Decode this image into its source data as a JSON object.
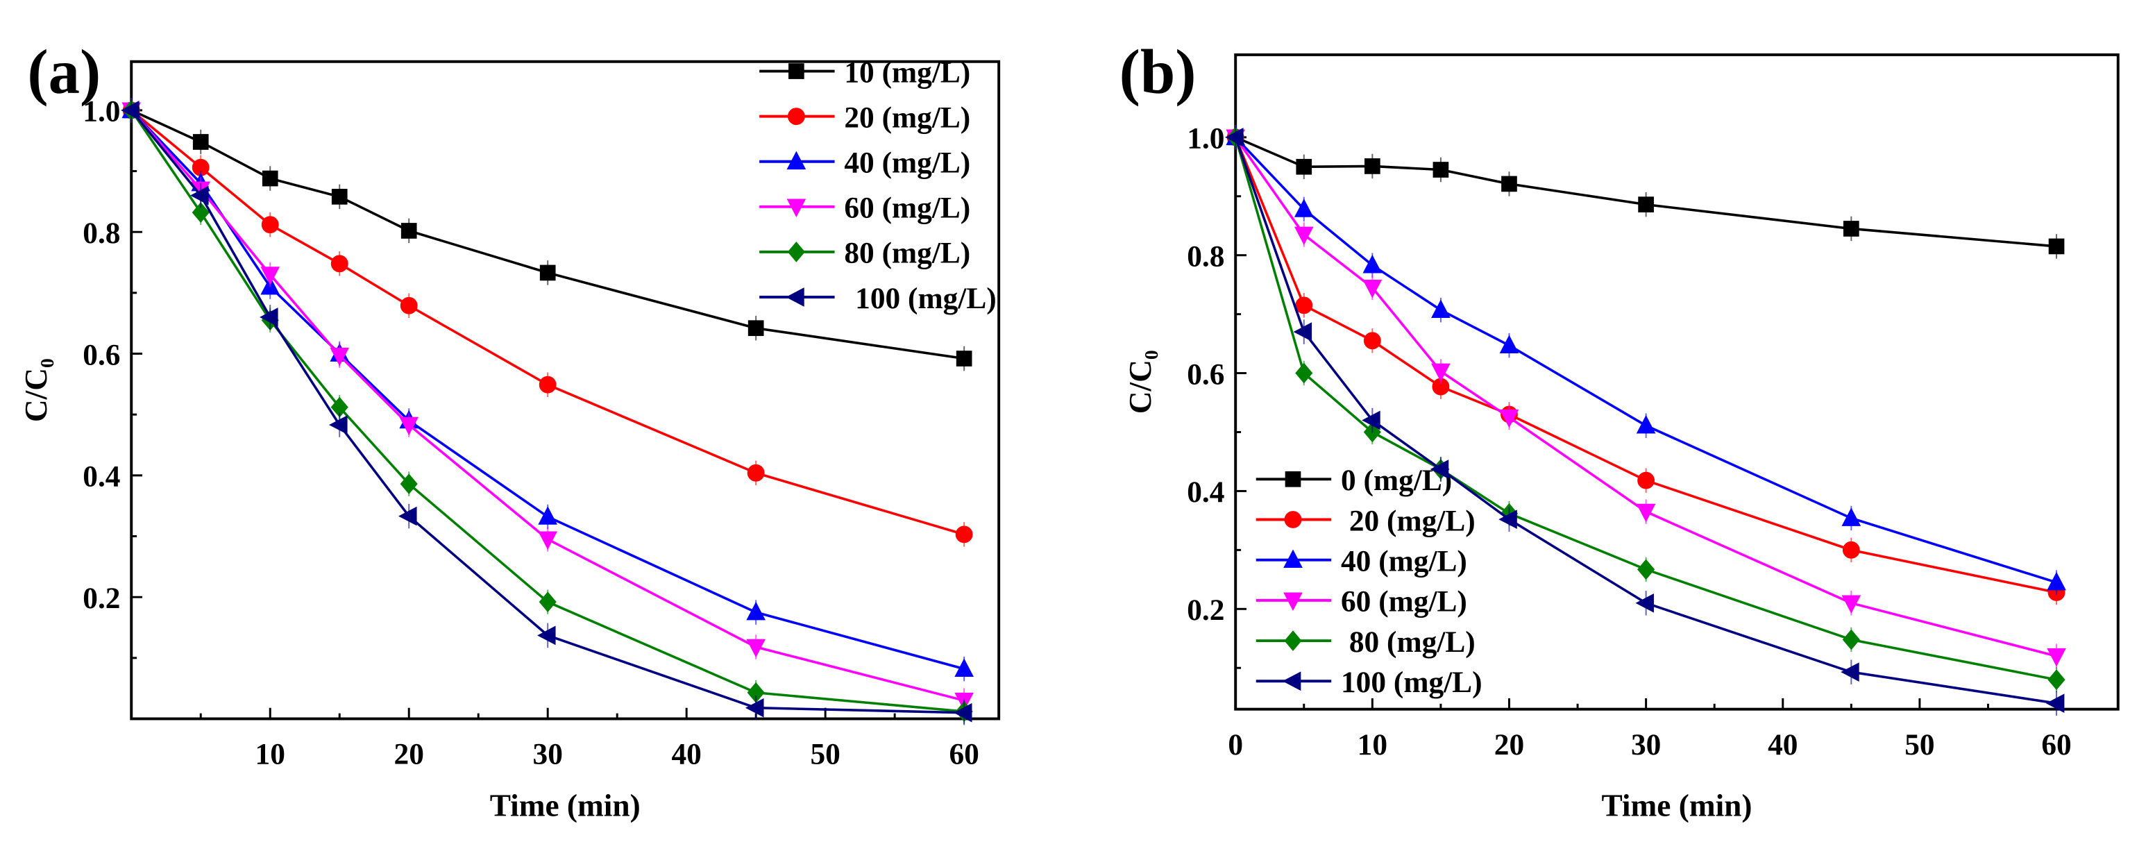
{
  "chart_data": [
    {
      "panel_label": "(a)",
      "type": "line",
      "xlabel": "Time (min)",
      "ylabel": "C/C",
      "ylabel_sub": "0",
      "xlim": [
        0,
        62.5
      ],
      "ylim": [
        0.0,
        1.08
      ],
      "xticks": [
        10,
        20,
        30,
        40,
        50,
        60
      ],
      "xtick_labels": [
        "10",
        "20",
        "30",
        "40",
        "50",
        "60"
      ],
      "yticks": [
        0.2,
        0.4,
        0.6,
        0.8,
        1.0
      ],
      "ytick_labels": [
        "0.2",
        "0.4",
        "0.6",
        "0.8",
        "1.0"
      ],
      "legend_placement": "top-right",
      "grid": false,
      "x": [
        0,
        5,
        10,
        15,
        20,
        30,
        45,
        60
      ],
      "series": [
        {
          "name": "10 (mg/L)",
          "color": "#000000",
          "marker": "square",
          "values": [
            1.0,
            0.948,
            0.888,
            0.858,
            0.802,
            0.733,
            0.642,
            0.592
          ]
        },
        {
          "name": "20 (mg/L)",
          "color": "#ff0000",
          "marker": "circle",
          "values": [
            1.0,
            0.906,
            0.812,
            0.748,
            0.679,
            0.549,
            0.404,
            0.303
          ]
        },
        {
          "name": "40 (mg/L)",
          "color": "#0000ff",
          "marker": "triangle-up",
          "values": [
            1.0,
            0.88,
            0.71,
            0.6,
            0.49,
            0.332,
            0.175,
            0.082
          ]
        },
        {
          "name": "60 (mg/L)",
          "color": "#ff00ff",
          "marker": "triangle-down",
          "values": [
            1.0,
            0.87,
            0.73,
            0.597,
            0.483,
            0.295,
            0.118,
            0.03
          ]
        },
        {
          "name": "80 (mg/L)",
          "color": "#008000",
          "marker": "diamond",
          "values": [
            1.0,
            0.832,
            0.655,
            0.512,
            0.386,
            0.192,
            0.043,
            0.012
          ]
        },
        {
          "name": "100 (mg/L)",
          "color": "#000080",
          "marker": "triangle-left",
          "values": [
            1.0,
            0.86,
            0.66,
            0.483,
            0.333,
            0.137,
            0.018,
            0.01
          ]
        }
      ]
    },
    {
      "panel_label": "(b)",
      "type": "line",
      "xlabel": "Time (min)",
      "ylabel": "C/C",
      "ylabel_sub": "0",
      "xlim": [
        0,
        64.5
      ],
      "ylim": [
        0.03,
        1.14
      ],
      "xticks": [
        0,
        10,
        20,
        30,
        40,
        50,
        60
      ],
      "xtick_labels": [
        "0",
        "10",
        "20",
        "30",
        "40",
        "50",
        "60"
      ],
      "yticks": [
        0.2,
        0.4,
        0.6,
        0.8,
        1.0
      ],
      "ytick_labels": [
        "0.2",
        "0.4",
        "0.6",
        "0.8",
        "1.0"
      ],
      "legend_placement": "bottom-left",
      "grid": false,
      "x": [
        0,
        5,
        10,
        15,
        20,
        30,
        45,
        60
      ],
      "series": [
        {
          "name": "0 (mg/L)",
          "color": "#000000",
          "marker": "square",
          "values": [
            1.0,
            0.95,
            0.951,
            0.945,
            0.921,
            0.886,
            0.845,
            0.815
          ]
        },
        {
          "name": "20 (mg/L)",
          "color": "#ff0000",
          "marker": "circle",
          "values": [
            1.0,
            0.715,
            0.655,
            0.577,
            0.53,
            0.418,
            0.3,
            0.228
          ]
        },
        {
          "name": "40 (mg/L)",
          "color": "#0000ff",
          "marker": "triangle-up",
          "values": [
            1.0,
            0.878,
            0.783,
            0.707,
            0.647,
            0.511,
            0.354,
            0.245
          ]
        },
        {
          "name": "60 (mg/L)",
          "color": "#ff00ff",
          "marker": "triangle-down",
          "values": [
            1.0,
            0.835,
            0.745,
            0.603,
            0.525,
            0.365,
            0.21,
            0.12
          ]
        },
        {
          "name": "80 (mg/L)",
          "color": "#008000",
          "marker": "diamond",
          "values": [
            1.0,
            0.6,
            0.5,
            0.437,
            0.362,
            0.267,
            0.148,
            0.08
          ]
        },
        {
          "name": "100 (mg/L)",
          "color": "#000080",
          "marker": "triangle-left",
          "values": [
            1.0,
            0.67,
            0.52,
            0.437,
            0.352,
            0.21,
            0.093,
            0.04
          ]
        }
      ]
    }
  ]
}
